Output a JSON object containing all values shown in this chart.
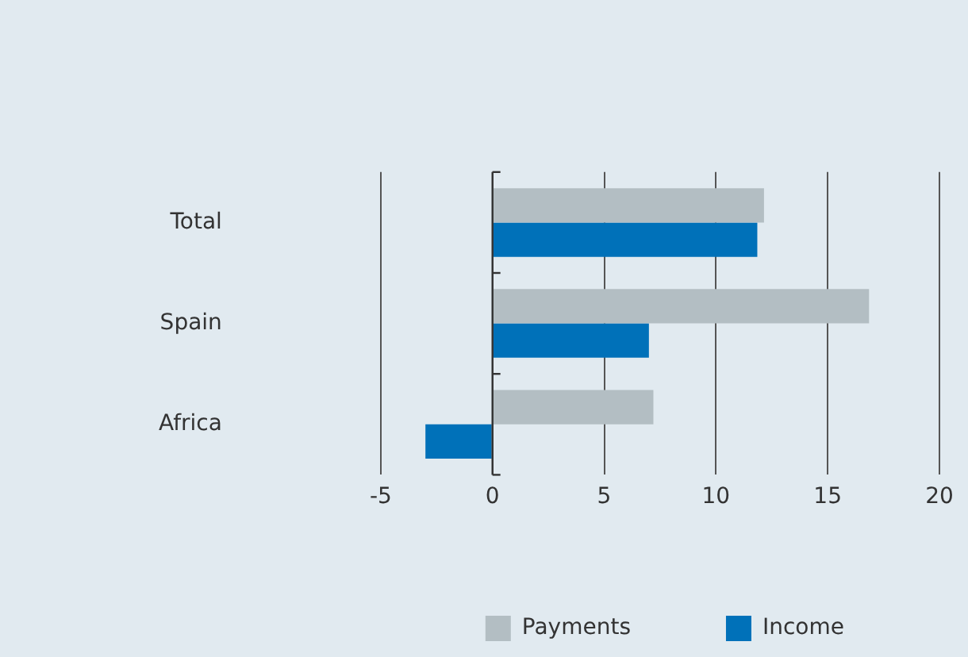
{
  "chart_data": {
    "type": "bar",
    "orientation": "horizontal",
    "categories": [
      "Total",
      "Spain",
      "Africa"
    ],
    "series": [
      {
        "name": "Payments",
        "color": "#b3bec3",
        "values": [
          12.15,
          16.85,
          7.2
        ]
      },
      {
        "name": "Income",
        "color": "#0071b9",
        "values": [
          11.85,
          7.0,
          -3.0
        ]
      }
    ],
    "xlim": [
      -5,
      20
    ],
    "xticks": [
      -5,
      0,
      5,
      10,
      15,
      20
    ],
    "grid": "x",
    "legend": "bottom right"
  }
}
